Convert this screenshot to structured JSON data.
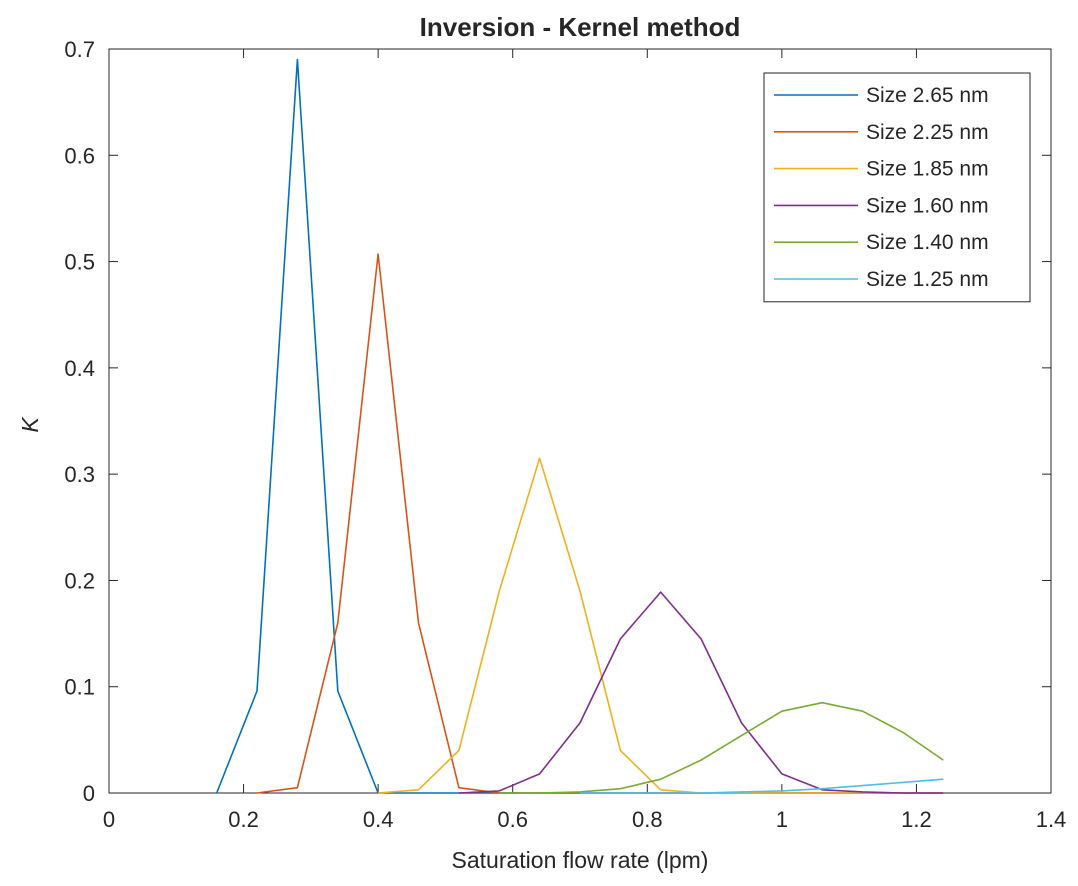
{
  "chart_data": {
    "type": "line",
    "title": "Inversion - Kernel method",
    "xlabel": "Saturation flow rate (lpm)",
    "ylabel": "K",
    "xlim": [
      0,
      1.4
    ],
    "ylim": [
      0,
      0.7
    ],
    "xticks": [
      0,
      0.2,
      0.4,
      0.6,
      0.8,
      1,
      1.2,
      1.4
    ],
    "xtick_labels": [
      "0",
      "0.2",
      "0.4",
      "0.6",
      "0.8",
      "1",
      "1.2",
      "1.4"
    ],
    "yticks": [
      0,
      0.1,
      0.2,
      0.3,
      0.4,
      0.5,
      0.6,
      0.7
    ],
    "ytick_labels": [
      "0",
      "0.1",
      "0.2",
      "0.3",
      "0.4",
      "0.5",
      "0.6",
      "0.7"
    ],
    "grid": false,
    "box": true,
    "legend_position": "top-right",
    "series": [
      {
        "name": "Size 2.65 nm",
        "color": "#0072BD",
        "x": [
          0.16,
          0.22,
          0.28,
          0.34,
          0.4,
          0.46,
          0.52,
          0.58,
          0.64,
          0.7,
          0.76,
          0.82,
          0.88,
          0.94,
          1.0,
          1.06,
          1.12,
          1.18,
          1.24
        ],
        "y": [
          0,
          0.096,
          0.69,
          0.096,
          0,
          0,
          0,
          0,
          0,
          0,
          0,
          0,
          0,
          0,
          0,
          0,
          0,
          0,
          0
        ]
      },
      {
        "name": "Size 2.25 nm",
        "color": "#D95319",
        "x": [
          0.22,
          0.28,
          0.34,
          0.4,
          0.46,
          0.52,
          0.58,
          0.64,
          0.7,
          0.76,
          0.82,
          0.88,
          0.94,
          1.0,
          1.06,
          1.12,
          1.18,
          1.24
        ],
        "y": [
          0,
          0.005,
          0.16,
          0.507,
          0.16,
          0.005,
          0,
          0,
          0,
          0,
          0,
          0,
          0,
          0,
          0,
          0,
          0,
          0
        ]
      },
      {
        "name": "Size 1.85 nm",
        "color": "#EDB120",
        "x": [
          0.4,
          0.46,
          0.52,
          0.58,
          0.64,
          0.7,
          0.76,
          0.82,
          0.88,
          0.94,
          1.0,
          1.06,
          1.12,
          1.18,
          1.24
        ],
        "y": [
          0,
          0.003,
          0.04,
          0.19,
          0.315,
          0.19,
          0.04,
          0.003,
          0,
          0,
          0,
          0,
          0,
          0,
          0
        ]
      },
      {
        "name": "Size 1.60 nm",
        "color": "#7E2F8E",
        "x": [
          0.52,
          0.58,
          0.64,
          0.7,
          0.76,
          0.82,
          0.88,
          0.94,
          1.0,
          1.06,
          1.12,
          1.18,
          1.24
        ],
        "y": [
          0,
          0.002,
          0.018,
          0.066,
          0.145,
          0.189,
          0.145,
          0.066,
          0.018,
          0.003,
          0.001,
          0,
          0
        ]
      },
      {
        "name": "Size 1.40 nm",
        "color": "#77AC30",
        "x": [
          0.58,
          0.64,
          0.7,
          0.76,
          0.82,
          0.88,
          0.94,
          1.0,
          1.06,
          1.12,
          1.18,
          1.24
        ],
        "y": [
          0,
          0,
          0.001,
          0.004,
          0.013,
          0.031,
          0.054,
          0.077,
          0.085,
          0.077,
          0.057,
          0.031
        ]
      },
      {
        "name": "Size 1.25 nm",
        "color": "#4DBEEE",
        "x": [
          0.7,
          0.76,
          0.82,
          0.88,
          0.94,
          1.0,
          1.06,
          1.12,
          1.18,
          1.24
        ],
        "y": [
          0,
          0,
          0,
          0,
          0.001,
          0.002,
          0.004,
          0.007,
          0.01,
          0.013
        ]
      }
    ]
  }
}
